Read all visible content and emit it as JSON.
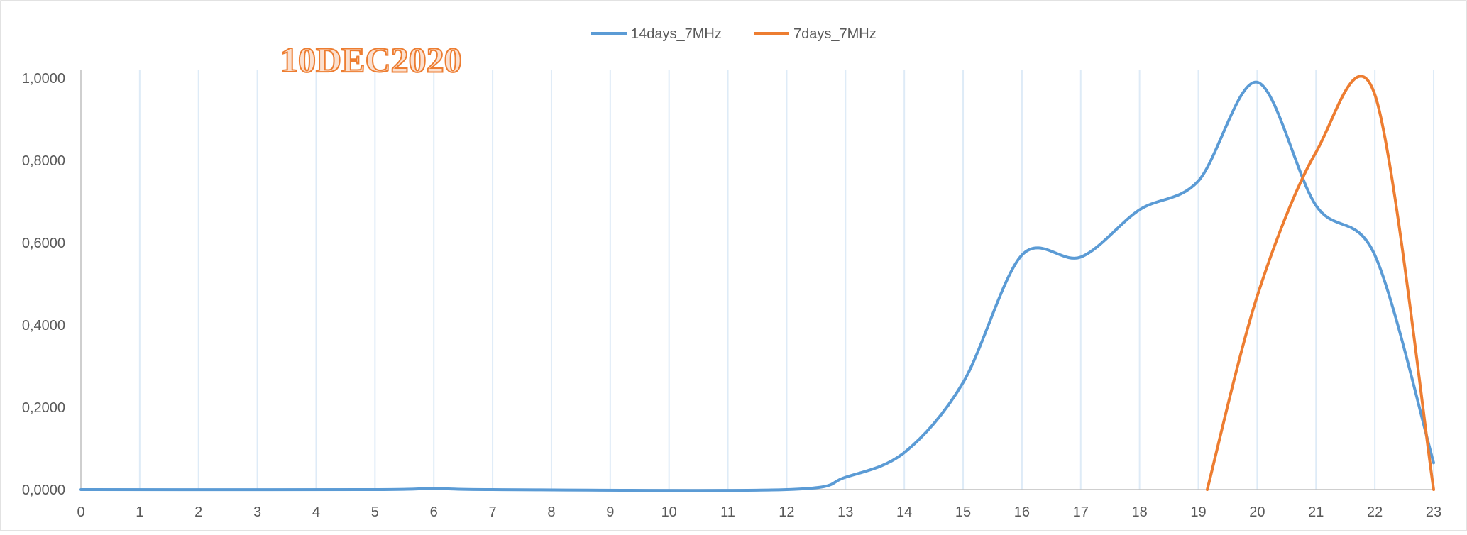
{
  "chart_data": {
    "type": "line",
    "title": "",
    "annotation": "10DEC2020",
    "xlabel": "",
    "ylabel": "",
    "xlim": [
      0,
      23
    ],
    "ylim": [
      0,
      1
    ],
    "x_ticks": [
      0,
      1,
      2,
      3,
      4,
      5,
      6,
      7,
      8,
      9,
      10,
      11,
      12,
      13,
      14,
      15,
      16,
      17,
      18,
      19,
      20,
      21,
      22,
      23
    ],
    "y_ticks": [
      "0,0000",
      "0,2000",
      "0,4000",
      "0,6000",
      "0,8000",
      "1,0000"
    ],
    "grid": "vertical",
    "legend_position": "top",
    "series": [
      {
        "name": "14days_7MHz",
        "color": "#5B9BD5",
        "points": [
          [
            0,
            0
          ],
          [
            5,
            0
          ],
          [
            6,
            0.003
          ],
          [
            7,
            0
          ],
          [
            12,
            0
          ],
          [
            13,
            0.03
          ],
          [
            14,
            0.09
          ],
          [
            15,
            0.26
          ],
          [
            16,
            0.57
          ],
          [
            17,
            0.565
          ],
          [
            18,
            0.68
          ],
          [
            19,
            0.75
          ],
          [
            20,
            0.99
          ],
          [
            21,
            0.69
          ],
          [
            22,
            0.57
          ],
          [
            23,
            0.065
          ]
        ]
      },
      {
        "name": "7days_7MHz",
        "color": "#ED7D31",
        "points": [
          [
            19.15,
            0
          ],
          [
            20,
            0.47
          ],
          [
            21,
            0.82
          ],
          [
            22,
            0.96
          ],
          [
            23,
            0
          ]
        ]
      }
    ]
  }
}
